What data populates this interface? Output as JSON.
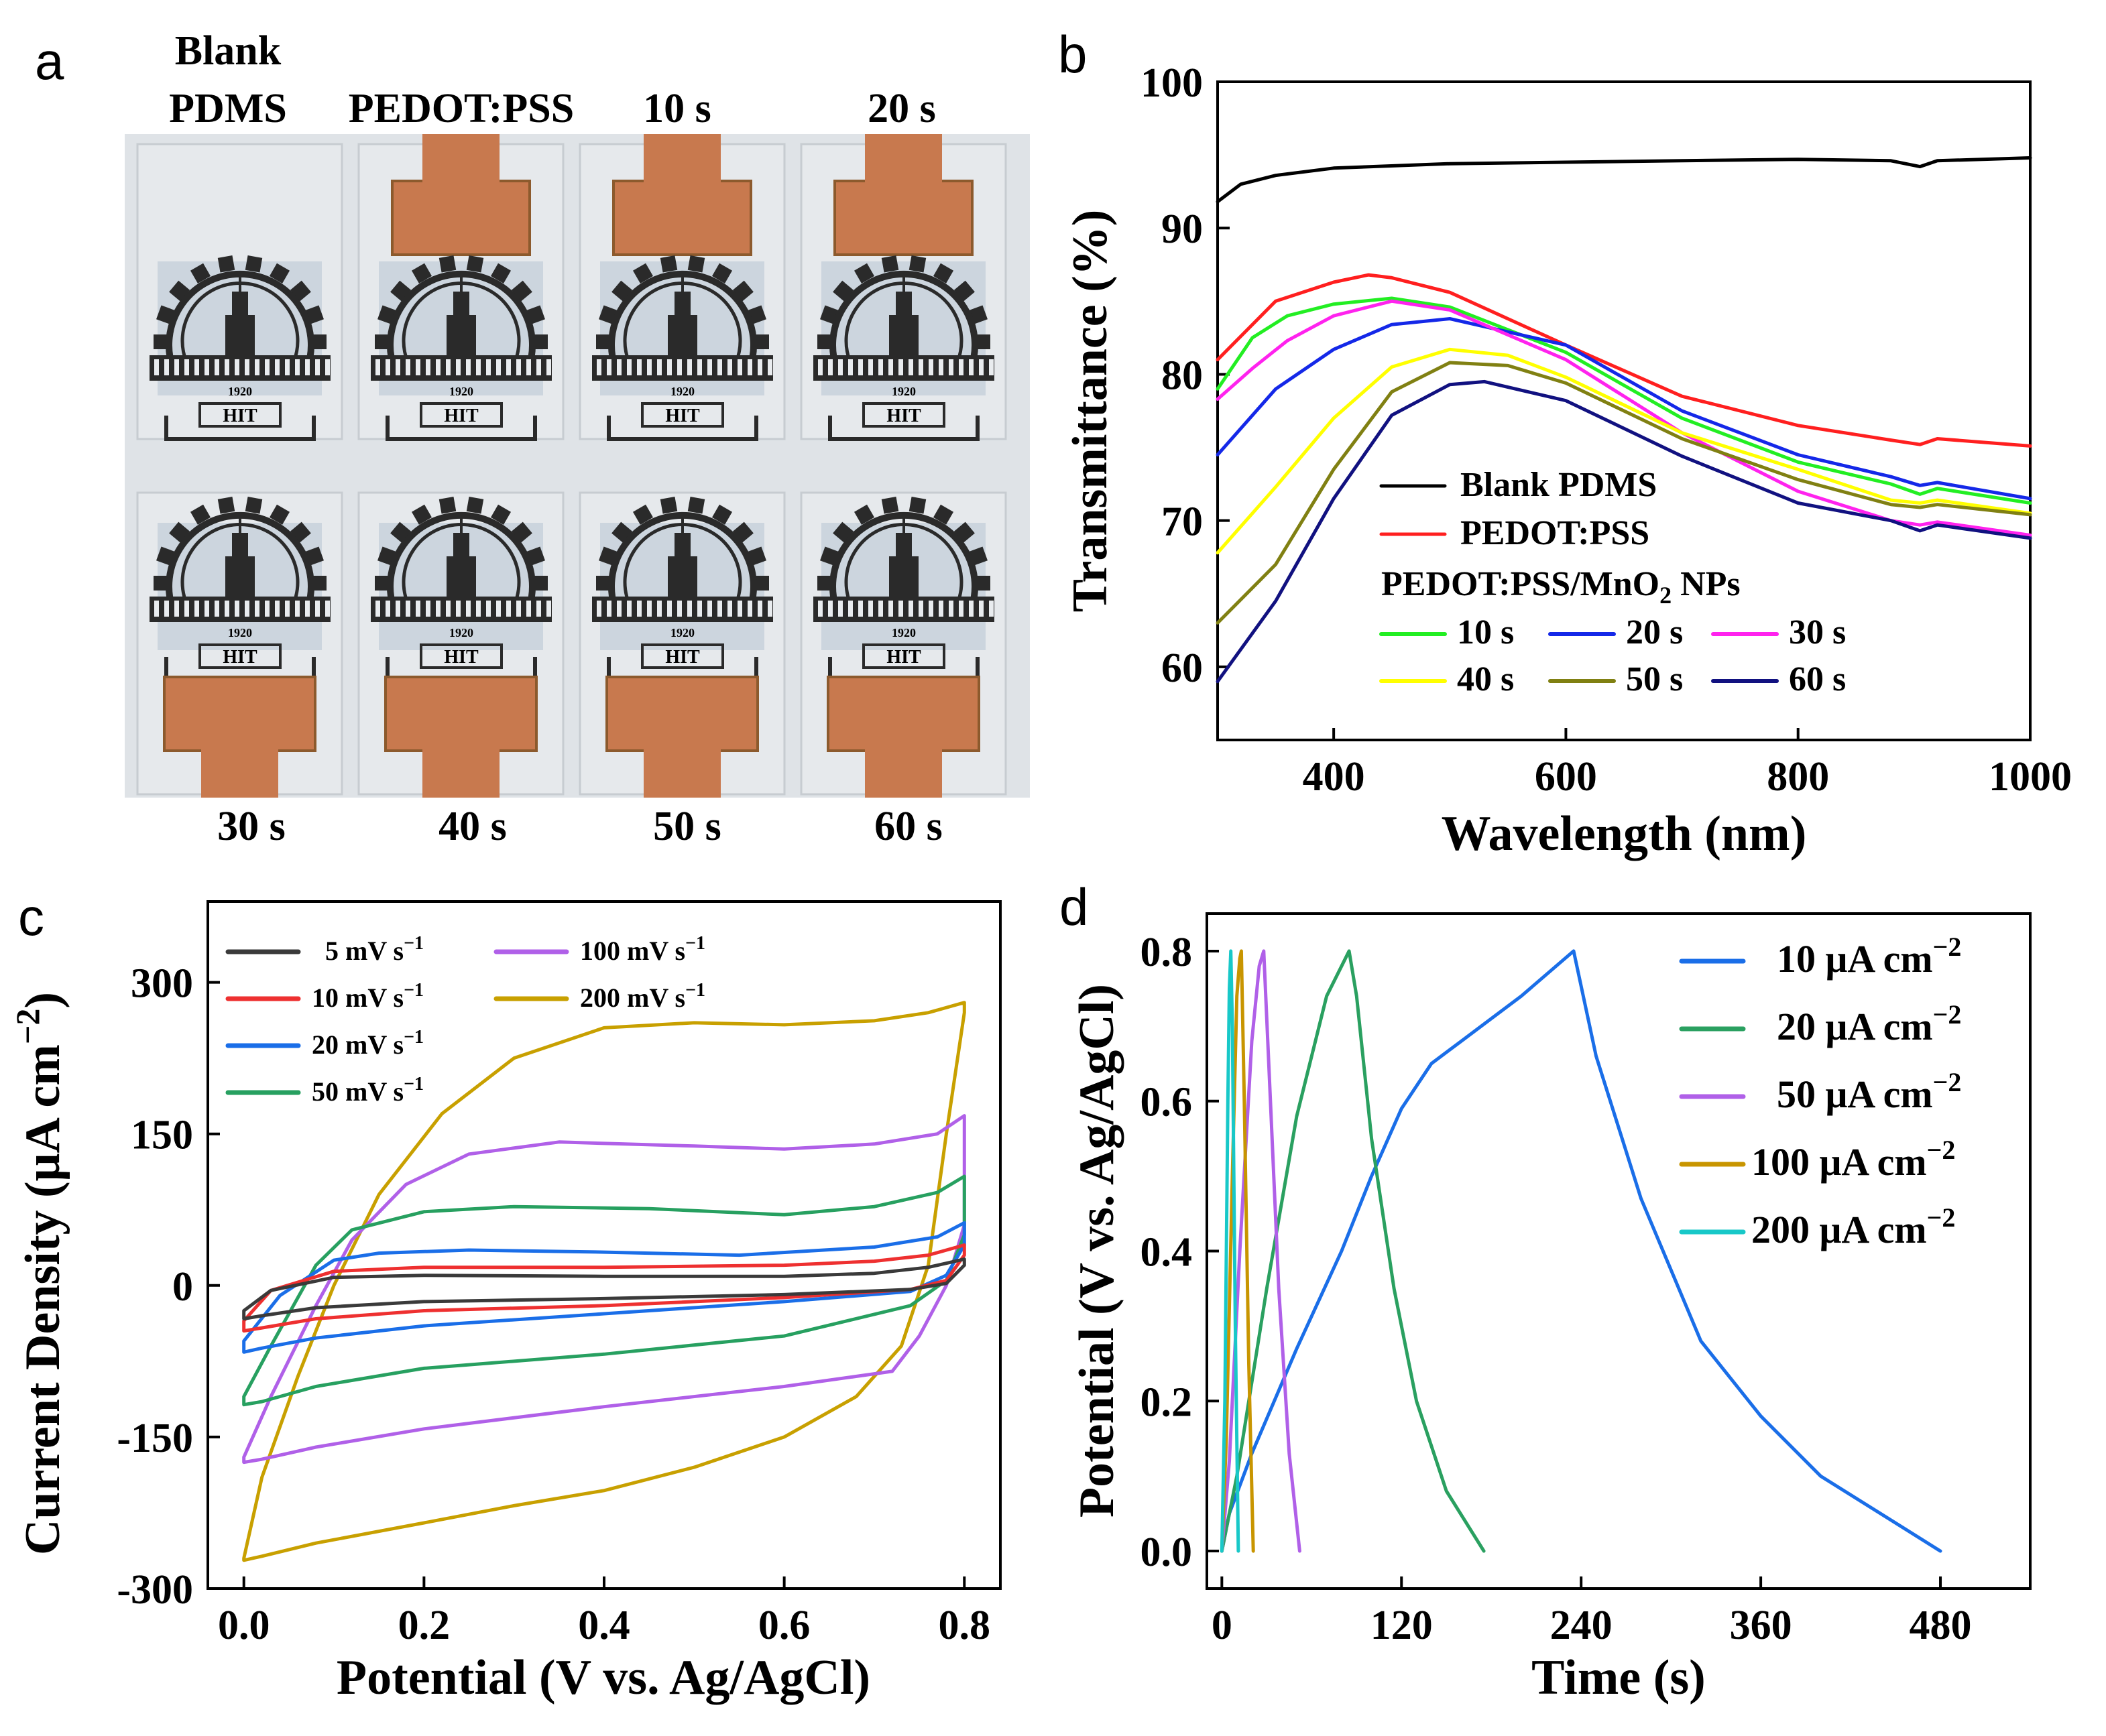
{
  "panel_a": {
    "label": "a",
    "top_labels": [
      {
        "lines": [
          "Blank",
          "PDMS"
        ]
      },
      {
        "lines": [
          "PEDOT:PSS"
        ]
      },
      {
        "lines": [
          "10 s"
        ]
      },
      {
        "lines": [
          "20 s"
        ]
      }
    ],
    "bottom_labels": [
      "30 s",
      "40 s",
      "50 s",
      "60 s"
    ],
    "logo_text_year": "1920",
    "logo_text_hit": "HIT",
    "colors": {
      "copper": "#c8794e",
      "film": "#e6e9ec",
      "logo": "#2a2a2a",
      "tape": "#b7c4d4"
    }
  },
  "chart_data": [
    {
      "panel": "b",
      "type": "line",
      "title": "",
      "xlabel": "Wavelength (nm)",
      "ylabel": "Transmittance (%)",
      "xlim": [
        300,
        1000
      ],
      "ylim": [
        55,
        100
      ],
      "xticks": [
        400,
        600,
        800,
        1000
      ],
      "yticks": [
        60,
        70,
        80,
        90,
        100
      ],
      "legend": {
        "placement": "lower-center",
        "entries_top": [
          "Blank PDMS",
          "PEDOT:PSS"
        ],
        "group_title": "PEDOT:PSS/MnO",
        "group_title_sub": "2",
        "group_title_tail": " NPs",
        "entries_grid": [
          "10 s",
          "20 s",
          "30 s",
          "40 s",
          "50 s",
          "60 s"
        ]
      },
      "series": [
        {
          "name": "Blank PDMS",
          "color": "#000000",
          "x": [
            300,
            320,
            350,
            400,
            500,
            600,
            700,
            800,
            880,
            905,
            920,
            1000
          ],
          "y": [
            91.8,
            93,
            93.6,
            94.1,
            94.4,
            94.5,
            94.6,
            94.7,
            94.6,
            94.2,
            94.6,
            94.8
          ]
        },
        {
          "name": "PEDOT:PSS",
          "color": "#ff1f1f",
          "x": [
            300,
            350,
            400,
            430,
            450,
            500,
            600,
            700,
            800,
            880,
            905,
            920,
            1000
          ],
          "y": [
            81,
            85,
            86.3,
            86.8,
            86.6,
            85.6,
            82,
            78.5,
            76.5,
            75.5,
            75.2,
            75.6,
            75.1
          ]
        },
        {
          "name": "10 s",
          "color": "#22ee22",
          "x": [
            300,
            330,
            360,
            400,
            450,
            500,
            600,
            700,
            800,
            880,
            905,
            920,
            1000
          ],
          "y": [
            79,
            82.5,
            84,
            84.8,
            85.2,
            84.6,
            81.5,
            77,
            74,
            72.5,
            71.8,
            72.2,
            71.2
          ]
        },
        {
          "name": "20 s",
          "color": "#1428e8",
          "x": [
            300,
            350,
            400,
            450,
            500,
            600,
            700,
            800,
            880,
            905,
            920,
            1000
          ],
          "y": [
            74.5,
            79,
            81.7,
            83.4,
            83.8,
            82,
            77.5,
            74.5,
            73,
            72.4,
            72.6,
            71.5
          ]
        },
        {
          "name": "30 s",
          "color": "#ff22ee",
          "x": [
            300,
            330,
            360,
            400,
            450,
            500,
            600,
            700,
            800,
            880,
            905,
            920,
            1000
          ],
          "y": [
            78.3,
            80.4,
            82.3,
            84,
            85,
            84.4,
            81,
            76,
            72,
            70,
            69.7,
            69.9,
            69
          ]
        },
        {
          "name": "40 s",
          "color": "#ffff00",
          "x": [
            300,
            350,
            400,
            450,
            500,
            550,
            600,
            700,
            800,
            880,
            905,
            920,
            1000
          ],
          "y": [
            67.8,
            72.3,
            77,
            80.5,
            81.7,
            81.3,
            79.8,
            76,
            73.5,
            71.4,
            71.2,
            71.4,
            70.5
          ]
        },
        {
          "name": "50 s",
          "color": "#808012",
          "x": [
            300,
            350,
            400,
            450,
            500,
            550,
            600,
            700,
            800,
            880,
            905,
            920,
            1000
          ],
          "y": [
            63,
            67,
            73.5,
            78.8,
            80.8,
            80.6,
            79.4,
            75.6,
            72.8,
            71.1,
            70.9,
            71.1,
            70.4
          ]
        },
        {
          "name": "60 s",
          "color": "#111180",
          "x": [
            300,
            350,
            400,
            450,
            500,
            530,
            600,
            700,
            800,
            880,
            905,
            920,
            1000
          ],
          "y": [
            59,
            64.5,
            71.5,
            77.2,
            79.3,
            79.5,
            78.2,
            74.4,
            71.2,
            70,
            69.3,
            69.7,
            68.8
          ]
        }
      ]
    },
    {
      "panel": "c",
      "type": "line",
      "title": "",
      "xlabel": "Potential (V vs. Ag/AgCl)",
      "ylabel_main": "Current Density (μA cm",
      "ylabel_sup": "−2",
      "ylabel_tail": ")",
      "xlim": [
        -0.04,
        0.84
      ],
      "ylim": [
        -300,
        380
      ],
      "xticks": [
        0.0,
        0.2,
        0.4,
        0.6,
        0.8
      ],
      "xtick_labels": [
        "0.0",
        "0.2",
        "0.4",
        "0.6",
        "0.8"
      ],
      "yticks": [
        -300,
        -150,
        0,
        150,
        300
      ],
      "legend": {
        "placement": "top-left",
        "columns": 2
      },
      "series": [
        {
          "name": "5 mV s",
          "sup": "−1",
          "color": "#3a3a3a",
          "upper": [
            [
              0,
              -25
            ],
            [
              0.03,
              -5
            ],
            [
              0.1,
              8
            ],
            [
              0.2,
              10
            ],
            [
              0.4,
              9
            ],
            [
              0.6,
              9
            ],
            [
              0.7,
              12
            ],
            [
              0.76,
              18
            ],
            [
              0.8,
              26
            ]
          ],
          "lower": [
            [
              0.8,
              20
            ],
            [
              0.78,
              2
            ],
            [
              0.74,
              -4
            ],
            [
              0.6,
              -9
            ],
            [
              0.4,
              -13
            ],
            [
              0.2,
              -16
            ],
            [
              0.08,
              -22
            ],
            [
              0.02,
              -30
            ],
            [
              0,
              -33
            ]
          ]
        },
        {
          "name": "10 mV s",
          "sup": "−1",
          "color": "#ee3030",
          "upper": [
            [
              0,
              -35
            ],
            [
              0.03,
              -5
            ],
            [
              0.1,
              14
            ],
            [
              0.2,
              18
            ],
            [
              0.4,
              18
            ],
            [
              0.6,
              20
            ],
            [
              0.7,
              24
            ],
            [
              0.76,
              30
            ],
            [
              0.8,
              40
            ]
          ],
          "lower": [
            [
              0.8,
              30
            ],
            [
              0.78,
              5
            ],
            [
              0.74,
              -4
            ],
            [
              0.6,
              -12
            ],
            [
              0.4,
              -20
            ],
            [
              0.2,
              -25
            ],
            [
              0.08,
              -33
            ],
            [
              0.02,
              -42
            ],
            [
              0,
              -45
            ]
          ]
        },
        {
          "name": "20 mV s",
          "sup": "−1",
          "color": "#1a6ee8",
          "upper": [
            [
              0,
              -55
            ],
            [
              0.04,
              -10
            ],
            [
              0.1,
              25
            ],
            [
              0.15,
              32
            ],
            [
              0.25,
              35
            ],
            [
              0.4,
              33
            ],
            [
              0.55,
              30
            ],
            [
              0.7,
              38
            ],
            [
              0.77,
              48
            ],
            [
              0.8,
              62
            ]
          ],
          "lower": [
            [
              0.8,
              40
            ],
            [
              0.78,
              10
            ],
            [
              0.74,
              -6
            ],
            [
              0.6,
              -16
            ],
            [
              0.4,
              -28
            ],
            [
              0.2,
              -40
            ],
            [
              0.08,
              -52
            ],
            [
              0.02,
              -62
            ],
            [
              0,
              -66
            ]
          ]
        },
        {
          "name": "50 mV s",
          "sup": "−1",
          "color": "#27a060",
          "upper": [
            [
              0,
              -110
            ],
            [
              0.03,
              -60
            ],
            [
              0.08,
              20
            ],
            [
              0.12,
              55
            ],
            [
              0.2,
              73
            ],
            [
              0.3,
              78
            ],
            [
              0.45,
              76
            ],
            [
              0.6,
              70
            ],
            [
              0.7,
              78
            ],
            [
              0.77,
              92
            ],
            [
              0.8,
              108
            ]
          ],
          "lower": [
            [
              0.8,
              50
            ],
            [
              0.78,
              5
            ],
            [
              0.74,
              -20
            ],
            [
              0.6,
              -50
            ],
            [
              0.4,
              -68
            ],
            [
              0.2,
              -82
            ],
            [
              0.08,
              -100
            ],
            [
              0.02,
              -115
            ],
            [
              0,
              -118
            ]
          ]
        },
        {
          "name": "100 mV s",
          "sup": "−1",
          "color": "#b060e8",
          "upper": [
            [
              0,
              -170
            ],
            [
              0.03,
              -110
            ],
            [
              0.08,
              -20
            ],
            [
              0.12,
              45
            ],
            [
              0.18,
              100
            ],
            [
              0.25,
              130
            ],
            [
              0.35,
              142
            ],
            [
              0.5,
              138
            ],
            [
              0.6,
              135
            ],
            [
              0.7,
              140
            ],
            [
              0.77,
              150
            ],
            [
              0.8,
              168
            ]
          ],
          "lower": [
            [
              0.8,
              60
            ],
            [
              0.78,
              0
            ],
            [
              0.75,
              -50
            ],
            [
              0.72,
              -85
            ],
            [
              0.6,
              -100
            ],
            [
              0.4,
              -120
            ],
            [
              0.2,
              -142
            ],
            [
              0.08,
              -160
            ],
            [
              0.02,
              -172
            ],
            [
              0,
              -175
            ]
          ]
        },
        {
          "name": "200 mV s",
          "sup": "−1",
          "color": "#c8a000",
          "upper": [
            [
              0,
              -270
            ],
            [
              0.02,
              -190
            ],
            [
              0.06,
              -90
            ],
            [
              0.1,
              0
            ],
            [
              0.15,
              90
            ],
            [
              0.22,
              170
            ],
            [
              0.3,
              225
            ],
            [
              0.4,
              255
            ],
            [
              0.5,
              260
            ],
            [
              0.6,
              258
            ],
            [
              0.7,
              262
            ],
            [
              0.76,
              270
            ],
            [
              0.8,
              280
            ]
          ],
          "lower": [
            [
              0.8,
              270
            ],
            [
              0.78,
              150
            ],
            [
              0.76,
              20
            ],
            [
              0.73,
              -60
            ],
            [
              0.68,
              -110
            ],
            [
              0.6,
              -150
            ],
            [
              0.5,
              -180
            ],
            [
              0.4,
              -203
            ],
            [
              0.3,
              -218
            ],
            [
              0.2,
              -235
            ],
            [
              0.08,
              -255
            ],
            [
              0.02,
              -268
            ],
            [
              0,
              -272
            ]
          ]
        }
      ]
    },
    {
      "panel": "d",
      "type": "line",
      "title": "",
      "xlabel": "Time (s)",
      "ylabel": "Potential (V vs. Ag/AgCl)",
      "xlim": [
        -10,
        540
      ],
      "ylim": [
        -0.05,
        0.85
      ],
      "xticks": [
        0,
        120,
        240,
        360,
        480
      ],
      "yticks": [
        0.0,
        0.2,
        0.4,
        0.6,
        0.8
      ],
      "ytick_labels": [
        "0.0",
        "0.2",
        "0.4",
        "0.6",
        "0.8"
      ],
      "legend": {
        "placement": "top-right"
      },
      "series": [
        {
          "name": "10 μA cm",
          "sup": "−2",
          "color": "#1a6ee8",
          "x": [
            0,
            5,
            20,
            50,
            80,
            100,
            120,
            140,
            160,
            200,
            235,
            250,
            280,
            320,
            360,
            400,
            440,
            480
          ],
          "y": [
            0,
            0.05,
            0.13,
            0.27,
            0.4,
            0.5,
            0.59,
            0.65,
            0.68,
            0.74,
            0.8,
            0.66,
            0.47,
            0.28,
            0.18,
            0.1,
            0.05,
            0
          ]
        },
        {
          "name": "20 μA cm",
          "sup": "−2",
          "color": "#2aa060",
          "x": [
            0,
            10,
            30,
            50,
            70,
            85,
            90,
            100,
            115,
            130,
            150,
            175
          ],
          "y": [
            0,
            0.1,
            0.35,
            0.58,
            0.74,
            0.8,
            0.74,
            0.55,
            0.35,
            0.2,
            0.08,
            0
          ]
        },
        {
          "name": "50 μA cm",
          "sup": "−2",
          "color": "#b060e8",
          "x": [
            0,
            5,
            12,
            20,
            25,
            28,
            32,
            38,
            45,
            52
          ],
          "y": [
            0,
            0.12,
            0.4,
            0.68,
            0.78,
            0.8,
            0.62,
            0.35,
            0.13,
            0
          ]
        },
        {
          "name": "100 μA cm",
          "sup": "−2",
          "color": "#c89500",
          "x": [
            0,
            3,
            7,
            10,
            12,
            13,
            15,
            18,
            21
          ],
          "y": [
            0,
            0.15,
            0.5,
            0.74,
            0.79,
            0.8,
            0.6,
            0.25,
            0
          ]
        },
        {
          "name": "200 μA cm",
          "sup": "−2",
          "color": "#18c8c8",
          "x": [
            0,
            2,
            4,
            5,
            6,
            7,
            9,
            11
          ],
          "y": [
            0,
            0.2,
            0.6,
            0.75,
            0.8,
            0.7,
            0.3,
            0
          ]
        }
      ]
    }
  ]
}
